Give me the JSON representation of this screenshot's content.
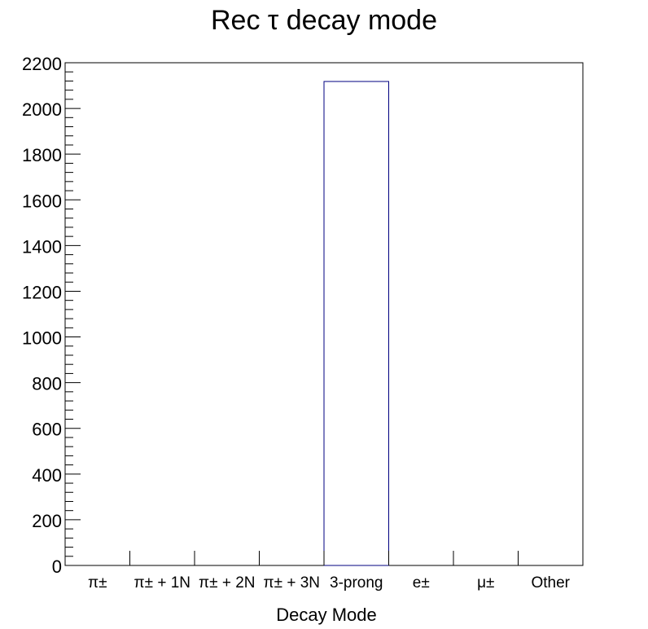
{
  "chart_data": {
    "type": "bar",
    "title": "Rec τ decay mode",
    "xlabel": "Decay Mode",
    "ylabel": "",
    "categories": [
      "π±",
      "π± + 1N",
      "π± + 2N",
      "π± + 3N",
      "3-prong",
      "e±",
      "μ±",
      "Other"
    ],
    "values": [
      0,
      0,
      0,
      0,
      2118,
      0,
      0,
      0
    ],
    "ylim": [
      0,
      2200
    ],
    "yticks": [
      0,
      200,
      400,
      600,
      800,
      1000,
      1200,
      1400,
      1600,
      1800,
      2000,
      2200
    ],
    "grid": false,
    "legend": "none",
    "colors": {
      "bar_line": "#000080",
      "axis": "#000000",
      "background": "#ffffff"
    }
  }
}
